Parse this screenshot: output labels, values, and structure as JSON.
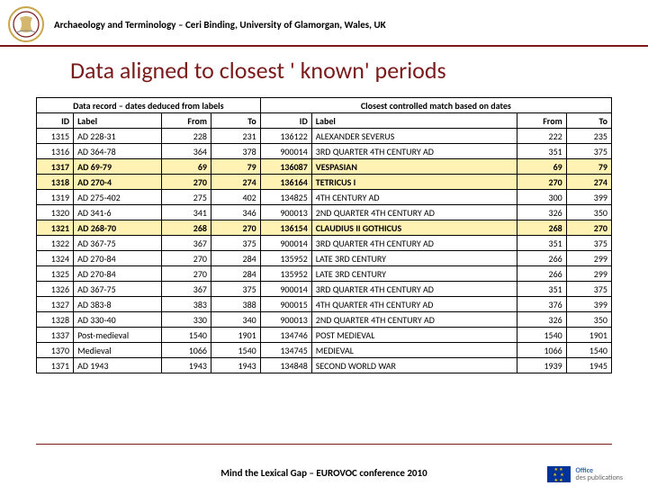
{
  "header": {
    "affiliation": "Archaeology and Terminology – Ceri Binding, University of Glamorgan, Wales, UK"
  },
  "title": "Data aligned to closest ' known' periods",
  "section_headers": {
    "left": "Data record – dates deduced from labels",
    "right": "Closest controlled match based on dates"
  },
  "columns": {
    "l_id": "ID",
    "l_label": "Label",
    "l_from": "From",
    "l_to": "To",
    "r_id": "ID",
    "r_label": "Label",
    "r_from": "From",
    "r_to": "To"
  },
  "rows": [
    {
      "hl": false,
      "l_id": "1315",
      "l_label": "AD 228-31",
      "l_from": "228",
      "l_to": "231",
      "r_id": "136122",
      "r_label": "ALEXANDER SEVERUS",
      "r_from": "222",
      "r_to": "235"
    },
    {
      "hl": false,
      "l_id": "1316",
      "l_label": "AD 364-78",
      "l_from": "364",
      "l_to": "378",
      "r_id": "900014",
      "r_label": "3RD QUARTER 4TH CENTURY AD",
      "r_from": "351",
      "r_to": "375"
    },
    {
      "hl": true,
      "l_id": "1317",
      "l_label": "AD 69-79",
      "l_from": "69",
      "l_to": "79",
      "r_id": "136087",
      "r_label": "VESPASIAN",
      "r_from": "69",
      "r_to": "79"
    },
    {
      "hl": true,
      "l_id": "1318",
      "l_label": "AD 270-4",
      "l_from": "270",
      "l_to": "274",
      "r_id": "136164",
      "r_label": "TETRICUS I",
      "r_from": "270",
      "r_to": "274"
    },
    {
      "hl": false,
      "l_id": "1319",
      "l_label": "AD 275-402",
      "l_from": "275",
      "l_to": "402",
      "r_id": "134825",
      "r_label": "4TH CENTURY AD",
      "r_from": "300",
      "r_to": "399"
    },
    {
      "hl": false,
      "l_id": "1320",
      "l_label": "AD 341-6",
      "l_from": "341",
      "l_to": "346",
      "r_id": "900013",
      "r_label": "2ND QUARTER 4TH CENTURY AD",
      "r_from": "326",
      "r_to": "350"
    },
    {
      "hl": true,
      "l_id": "1321",
      "l_label": "AD 268-70",
      "l_from": "268",
      "l_to": "270",
      "r_id": "136154",
      "r_label": "CLAUDIUS II GOTHICUS",
      "r_from": "268",
      "r_to": "270"
    },
    {
      "hl": false,
      "l_id": "1322",
      "l_label": "AD 367-75",
      "l_from": "367",
      "l_to": "375",
      "r_id": "900014",
      "r_label": "3RD QUARTER 4TH CENTURY AD",
      "r_from": "351",
      "r_to": "375"
    },
    {
      "hl": false,
      "l_id": "1324",
      "l_label": "AD 270-84",
      "l_from": "270",
      "l_to": "284",
      "r_id": "135952",
      "r_label": "LATE 3RD CENTURY",
      "r_from": "266",
      "r_to": "299"
    },
    {
      "hl": false,
      "l_id": "1325",
      "l_label": "AD 270-84",
      "l_from": "270",
      "l_to": "284",
      "r_id": "135952",
      "r_label": "LATE 3RD CENTURY",
      "r_from": "266",
      "r_to": "299"
    },
    {
      "hl": false,
      "l_id": "1326",
      "l_label": "AD 367-75",
      "l_from": "367",
      "l_to": "375",
      "r_id": "900014",
      "r_label": "3RD QUARTER 4TH CENTURY AD",
      "r_from": "351",
      "r_to": "375"
    },
    {
      "hl": false,
      "l_id": "1327",
      "l_label": "AD 383-8",
      "l_from": "383",
      "l_to": "388",
      "r_id": "900015",
      "r_label": "4TH QUARTER 4TH CENTURY AD",
      "r_from": "376",
      "r_to": "399"
    },
    {
      "hl": false,
      "l_id": "1328",
      "l_label": "AD 330-40",
      "l_from": "330",
      "l_to": "340",
      "r_id": "900013",
      "r_label": "2ND QUARTER 4TH CENTURY AD",
      "r_from": "326",
      "r_to": "350"
    },
    {
      "hl": false,
      "l_id": "1337",
      "l_label": "Post-medieval",
      "l_from": "1540",
      "l_to": "1901",
      "r_id": "134746",
      "r_label": "POST MEDIEVAL",
      "r_from": "1540",
      "r_to": "1901"
    },
    {
      "hl": false,
      "l_id": "1370",
      "l_label": "Medieval",
      "l_from": "1066",
      "l_to": "1540",
      "r_id": "134745",
      "r_label": "MEDIEVAL",
      "r_from": "1066",
      "r_to": "1540"
    },
    {
      "hl": false,
      "l_id": "1371",
      "l_label": "AD 1943",
      "l_from": "1943",
      "l_to": "1943",
      "r_id": "134848",
      "r_label": "SECOND WORLD WAR",
      "r_from": "1939",
      "r_to": "1945"
    }
  ],
  "footer": {
    "text": "Mind the Lexical Gap – EUROVOC conference 2010",
    "pub_line1": "Office",
    "pub_line2": "des publications"
  },
  "colors": {
    "accent": "#7a1a1a",
    "highlight": "#fff2b3",
    "eu_blue": "#003399",
    "eu_gold": "#ffcc00"
  },
  "col_widths": {
    "l_id": "36px",
    "l_label": "86px",
    "l_from": "48px",
    "l_to": "48px",
    "r_id": "50px",
    "r_label": "200px",
    "r_from": "48px",
    "r_to": "44px"
  }
}
